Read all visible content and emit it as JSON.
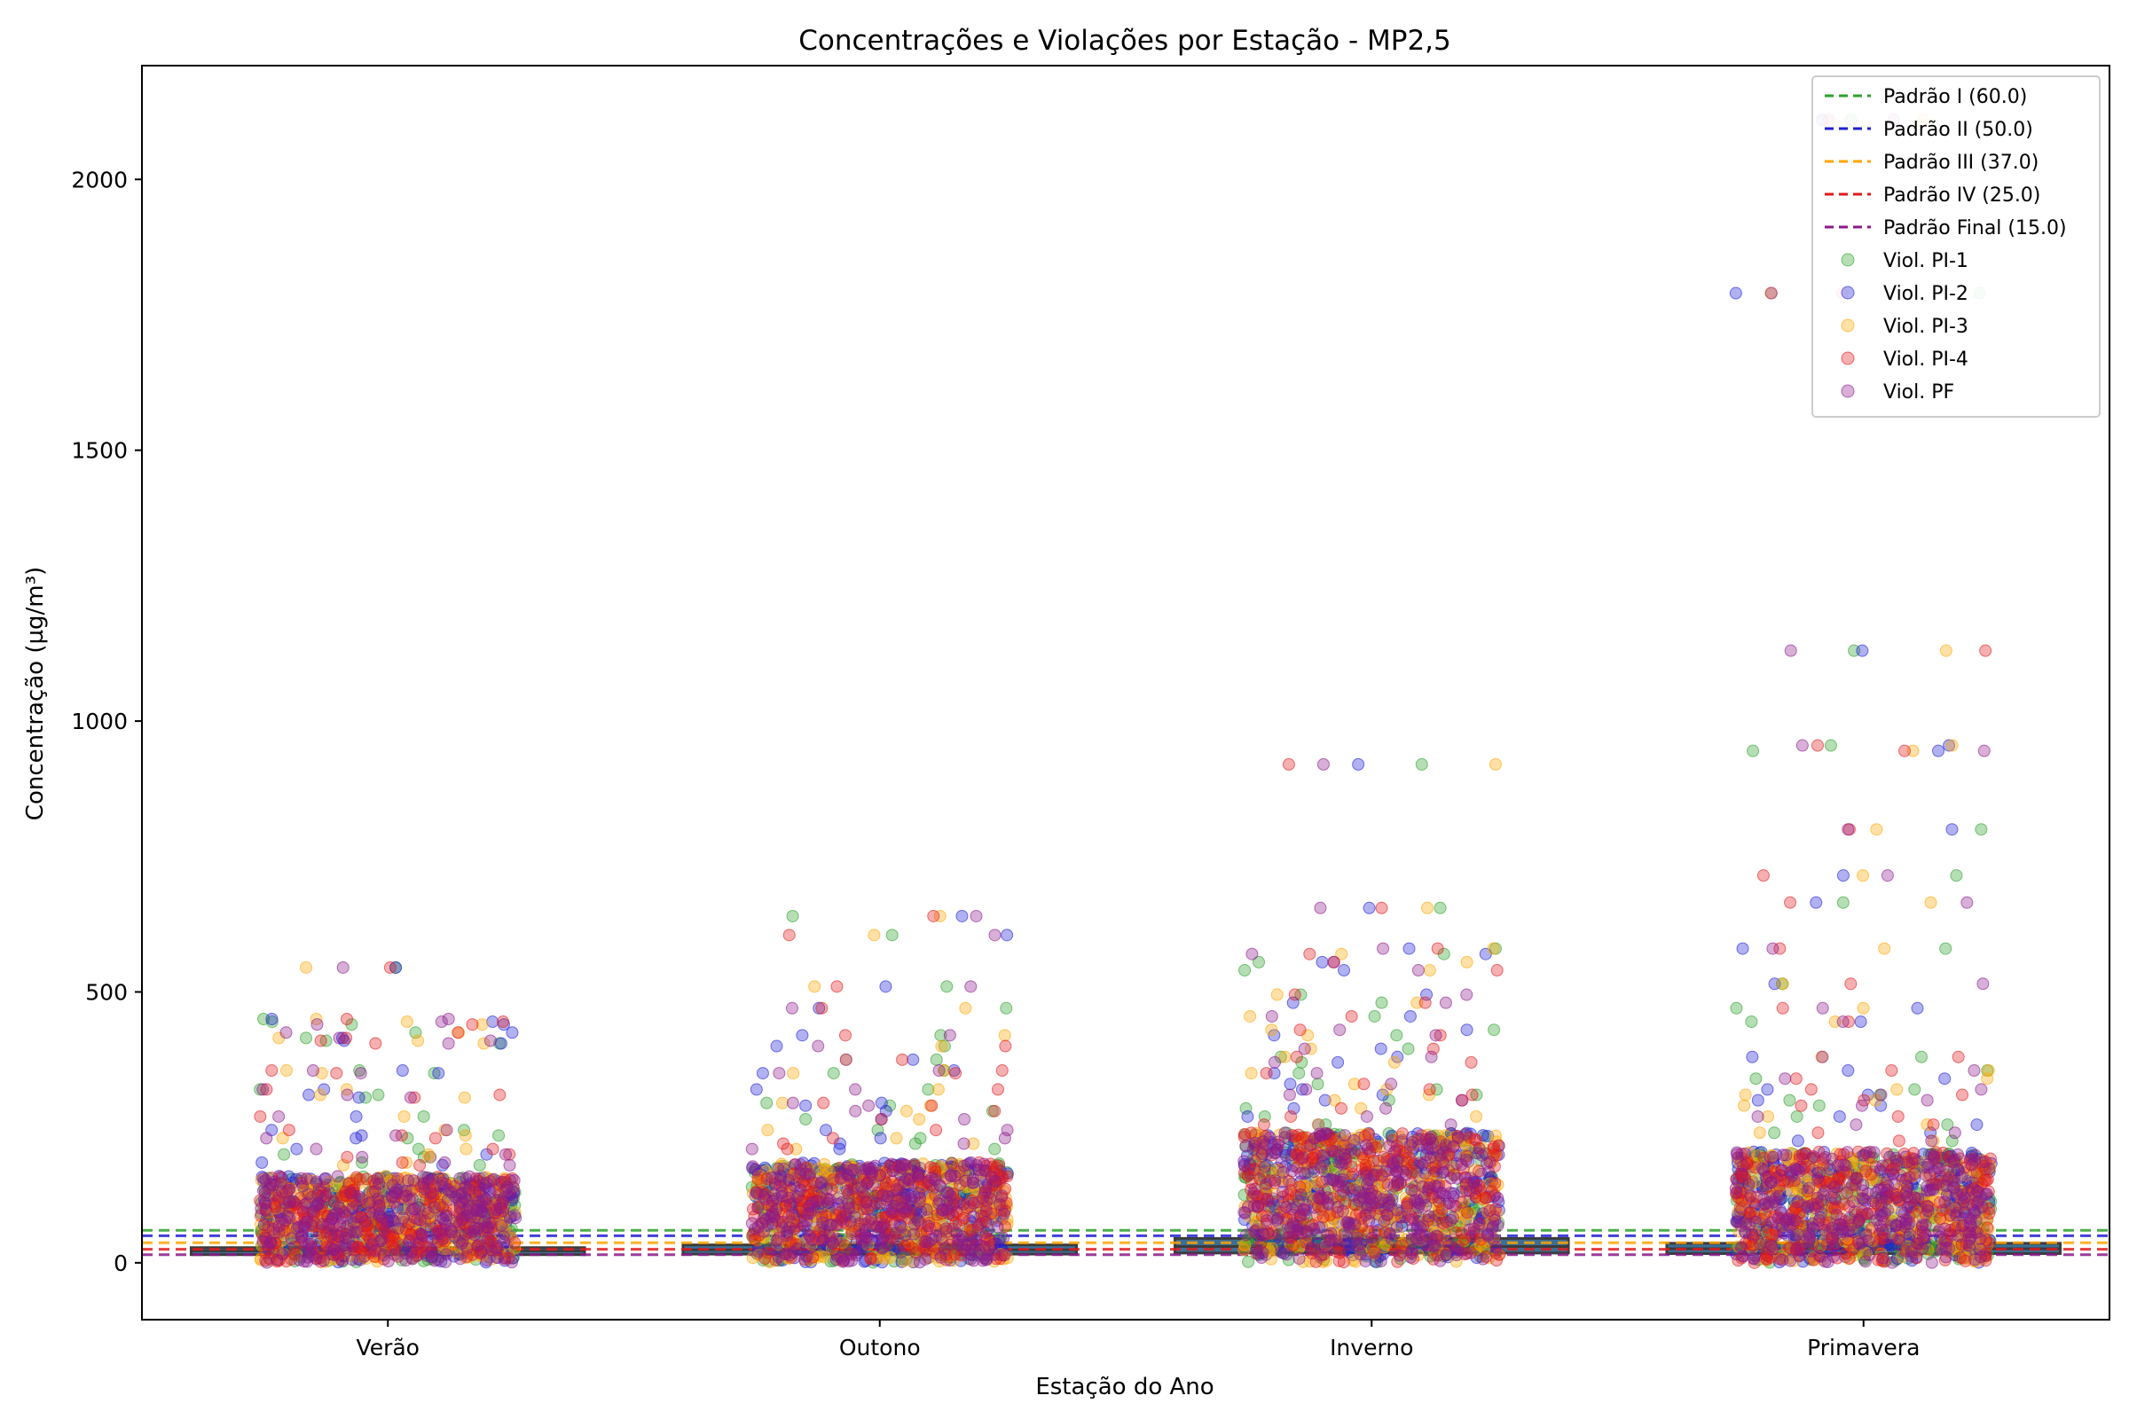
{
  "chart_data": {
    "type": "scatter",
    "title": "Concentrações e Violações por Estação - MP2,5",
    "xlabel": "Estação do Ano",
    "ylabel": "Concentração (µg/m³)",
    "categories": [
      "Verão",
      "Outono",
      "Inverno",
      "Primavera"
    ],
    "ylim": [
      -105,
      2210
    ],
    "yticks": [
      0,
      500,
      1000,
      1500,
      2000
    ],
    "ytick_labels": [
      "0",
      "500",
      "1000",
      "1500",
      "2000"
    ],
    "grid": false,
    "legend_position": "top-right",
    "thresholds": [
      {
        "name": "Padrão I (60.0)",
        "value": 60.0,
        "color": "#2ca02c"
      },
      {
        "name": "Padrão II (50.0)",
        "value": 50.0,
        "color": "#1f1fd6"
      },
      {
        "name": "Padrão III (37.0)",
        "value": 37.0,
        "color": "#ffa500"
      },
      {
        "name": "Padrão IV (25.0)",
        "value": 25.0,
        "color": "#e31a1c"
      },
      {
        "name": "Padrão Final (15.0)",
        "value": 15.0,
        "color": "#8b1a8b"
      }
    ],
    "boxes": [
      {
        "category": "Verão",
        "q1": 15,
        "median": 22,
        "q3": 28
      },
      {
        "category": "Outono",
        "q1": 16,
        "median": 24,
        "q3": 33
      },
      {
        "category": "Inverno",
        "q1": 18,
        "median": 30,
        "q3": 45
      },
      {
        "category": "Primavera",
        "q1": 17,
        "median": 26,
        "q3": 36
      }
    ],
    "series": [
      {
        "name": "Viol. PI-1",
        "color": "#2ca02c",
        "threshold": 60.0
      },
      {
        "name": "Viol. PI-2",
        "color": "#1f1fd6",
        "threshold": 50.0
      },
      {
        "name": "Viol. PI-3",
        "color": "#ffa500",
        "threshold": 37.0
      },
      {
        "name": "Viol. PI-4",
        "color": "#e31a1c",
        "threshold": 25.0
      },
      {
        "name": "Viol. PF",
        "color": "#8b1a8b",
        "threshold": 15.0
      }
    ],
    "dense_ranges": [
      {
        "category": "Verão",
        "min": 0,
        "dense_max": 160
      },
      {
        "category": "Outono",
        "min": 0,
        "dense_max": 185
      },
      {
        "category": "Inverno",
        "min": 0,
        "dense_max": 240
      },
      {
        "category": "Primavera",
        "min": 0,
        "dense_max": 205
      }
    ],
    "outliers": [
      {
        "category": "Verão",
        "values": [
          545,
          450,
          445,
          440,
          425,
          415,
          410,
          405,
          355,
          350,
          320,
          310,
          305,
          270,
          245,
          235,
          230,
          210,
          200,
          195,
          185,
          180
        ]
      },
      {
        "category": "Outono",
        "values": [
          640,
          605,
          510,
          470,
          420,
          400,
          375,
          355,
          350,
          320,
          295,
          290,
          280,
          265,
          245,
          230,
          220,
          210
        ]
      },
      {
        "category": "Inverno",
        "values": [
          920,
          655,
          580,
          570,
          555,
          540,
          495,
          480,
          455,
          430,
          420,
          395,
          380,
          370,
          350,
          330,
          320,
          310,
          300,
          285,
          270,
          255
        ]
      },
      {
        "category": "Primavera",
        "values": [
          2110,
          1790,
          1130,
          955,
          945,
          800,
          715,
          665,
          580,
          515,
          470,
          445,
          380,
          355,
          340,
          320,
          310,
          300,
          290,
          270,
          255,
          240,
          225
        ]
      }
    ]
  }
}
